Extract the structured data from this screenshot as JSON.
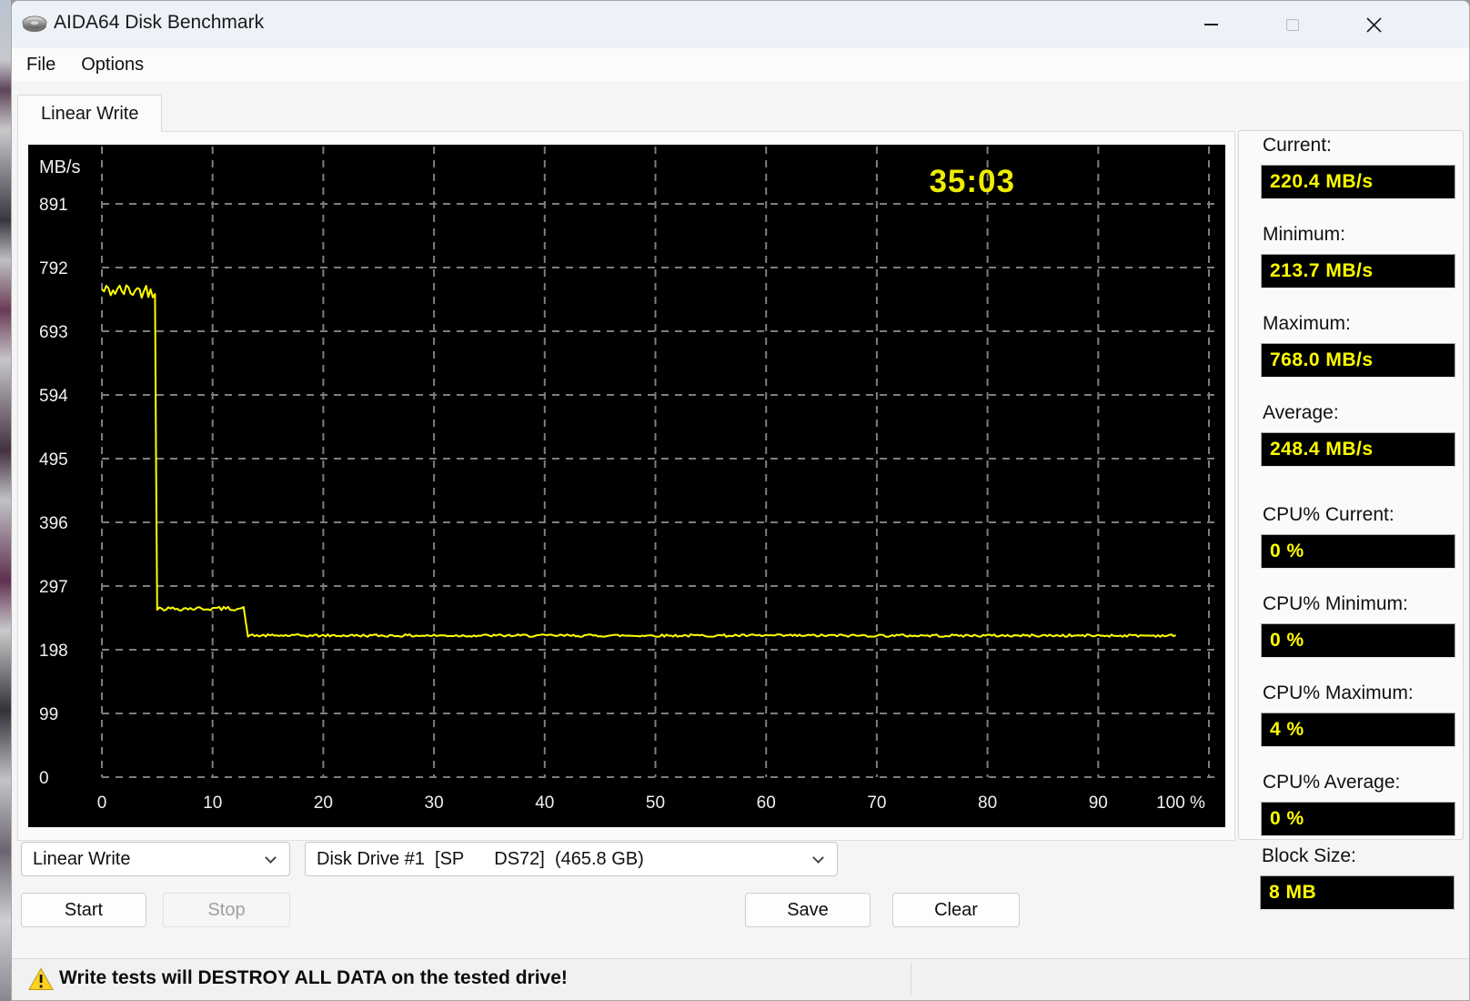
{
  "titlebar": {
    "title": "AIDA64 Disk Benchmark"
  },
  "menu": {
    "file": "File",
    "options": "Options"
  },
  "tab": {
    "label": "Linear Write"
  },
  "chart_data": {
    "type": "line",
    "y_unit_label": "MB/s",
    "x_unit": "%",
    "elapsed_time": "35:03",
    "ylim": [
      0,
      990
    ],
    "yticks": [
      891,
      792,
      693,
      594,
      495,
      396,
      297,
      198,
      99,
      0
    ],
    "xticks": [
      {
        "v": 0,
        "label": "0"
      },
      {
        "v": 10,
        "label": "10"
      },
      {
        "v": 20,
        "label": "20"
      },
      {
        "v": 30,
        "label": "30"
      },
      {
        "v": 40,
        "label": "40"
      },
      {
        "v": 50,
        "label": "50"
      },
      {
        "v": 60,
        "label": "60"
      },
      {
        "v": 70,
        "label": "70"
      },
      {
        "v": 80,
        "label": "80"
      },
      {
        "v": 90,
        "label": "90"
      },
      {
        "v": 100,
        "label": "100 %"
      }
    ],
    "grid_on": true,
    "grid_color": "#7e7e7e",
    "axis_text_color": "#f0f0f0",
    "timer_color": "#eded00",
    "line_color": "#ffff00",
    "background": "#000000",
    "series": [
      {
        "name": "Linear Write",
        "value_min_clamp": 214,
        "value_max_clamp": 768,
        "segments": [
          {
            "from": 0.0,
            "to": 4.9,
            "value": 756,
            "noise": 11
          },
          {
            "from": 4.9,
            "to": 5.0,
            "value": 485,
            "noise": 2
          },
          {
            "from": 5.0,
            "to": 12.8,
            "value": 262,
            "noise": 3
          },
          {
            "from": 13.2,
            "to": 97.0,
            "value": 220,
            "noise": 2
          }
        ]
      }
    ]
  },
  "stats": [
    {
      "label": "Current:",
      "value": "220.4 MB/s"
    },
    {
      "label": "Minimum:",
      "value": "213.7 MB/s"
    },
    {
      "label": "Maximum:",
      "value": "768.0 MB/s"
    },
    {
      "label": "Average:",
      "value": "248.4 MB/s"
    },
    {
      "label": "CPU% Current:",
      "value": "0 %"
    },
    {
      "label": "CPU% Minimum:",
      "value": "0 %"
    },
    {
      "label": "CPU% Maximum:",
      "value": "4 %"
    },
    {
      "label": "CPU% Average:",
      "value": "0 %"
    }
  ],
  "block_size": {
    "label": "Block Size:",
    "value": "8 MB"
  },
  "controls": {
    "test_type": "Linear Write",
    "drive": "Disk Drive #1  [SP      DS72]  (465.8 GB)",
    "start": "Start",
    "stop": "Stop",
    "save": "Save",
    "clear": "Clear"
  },
  "statusbar": {
    "warning": "Write tests will DESTROY ALL DATA on the tested drive!"
  }
}
